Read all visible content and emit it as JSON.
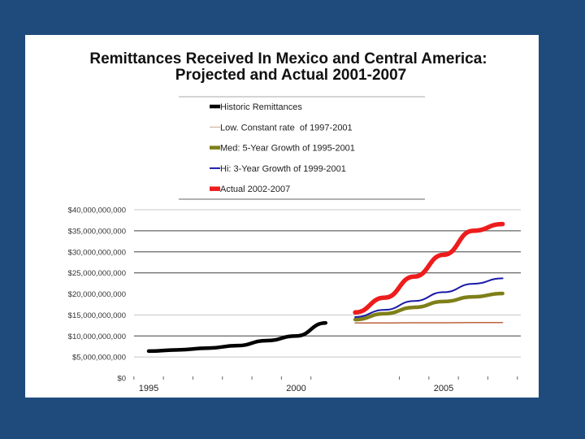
{
  "slide": {
    "background_color": "#1f4a7c",
    "panel_color": "#ffffff"
  },
  "chart_data": {
    "type": "line",
    "title": "Remittances Received In Mexico and Central America:",
    "subtitle": "Projected and Actual 2001-2007",
    "xlabel": "",
    "ylabel": "",
    "xlim": [
      1994.5,
      2008
    ],
    "ylim": [
      0,
      40000000000
    ],
    "grid": true,
    "legend_position": "top-center",
    "y_ticks": [
      {
        "value": 40000000000,
        "label": "$40,000,000,000"
      },
      {
        "value": 35000000000,
        "label": "$35,000,000,000"
      },
      {
        "value": 30000000000,
        "label": "$30,000,000,000"
      },
      {
        "value": 25000000000,
        "label": "$25,000,000,000"
      },
      {
        "value": 20000000000,
        "label": "$20,000,000,000"
      },
      {
        "value": 15000000000,
        "label": "$15,000,000,000"
      },
      {
        "value": 10000000000,
        "label": "$10,000,000,000"
      },
      {
        "value": 5000000000,
        "label": "$5,000,000,000"
      },
      {
        "value": 0,
        "label": "$0"
      }
    ],
    "x_ticks": [
      {
        "value": 1995,
        "label": "1995"
      },
      {
        "value": 2000,
        "label": "2000"
      },
      {
        "value": 2005,
        "label": "2005"
      }
    ],
    "series": [
      {
        "name": "Historic Remittances",
        "color": "#000000",
        "style": "thick",
        "x": [
          1995,
          1996,
          1997,
          1998,
          1999,
          2000,
          2001
        ],
        "values": [
          6400000000,
          6700000000,
          7100000000,
          7700000000,
          8900000000,
          10000000000,
          13100000000
        ]
      },
      {
        "name": "Low. Constant rate  of 1997-2001",
        "color": "#b8653f",
        "style": "thin",
        "x": [
          2002,
          2003,
          2004,
          2005,
          2006,
          2007
        ],
        "values": [
          13100000000,
          13100000000,
          13150000000,
          13150000000,
          13200000000,
          13200000000
        ]
      },
      {
        "name": "Med: 5-Year Growth of 1995-2001",
        "color": "#7f7f1a",
        "style": "thick",
        "x": [
          2002,
          2003,
          2004,
          2005,
          2006,
          2007
        ],
        "values": [
          13900000000,
          15300000000,
          16800000000,
          18200000000,
          19300000000,
          20100000000
        ]
      },
      {
        "name": "Hi: 3-Year Growth of 1999-2001",
        "color": "#1a1aa8",
        "style": "medium",
        "x": [
          2002,
          2003,
          2004,
          2005,
          2006,
          2007
        ],
        "values": [
          14500000000,
          16200000000,
          18300000000,
          20400000000,
          22400000000,
          23700000000
        ]
      },
      {
        "name": "Actual 2002-2007",
        "color": "#ee1c1c",
        "style": "extra-thick",
        "x": [
          2002,
          2003,
          2004,
          2005,
          2006,
          2007
        ],
        "values": [
          15600000000,
          19100000000,
          24100000000,
          29300000000,
          35000000000,
          36600000000
        ]
      }
    ]
  }
}
